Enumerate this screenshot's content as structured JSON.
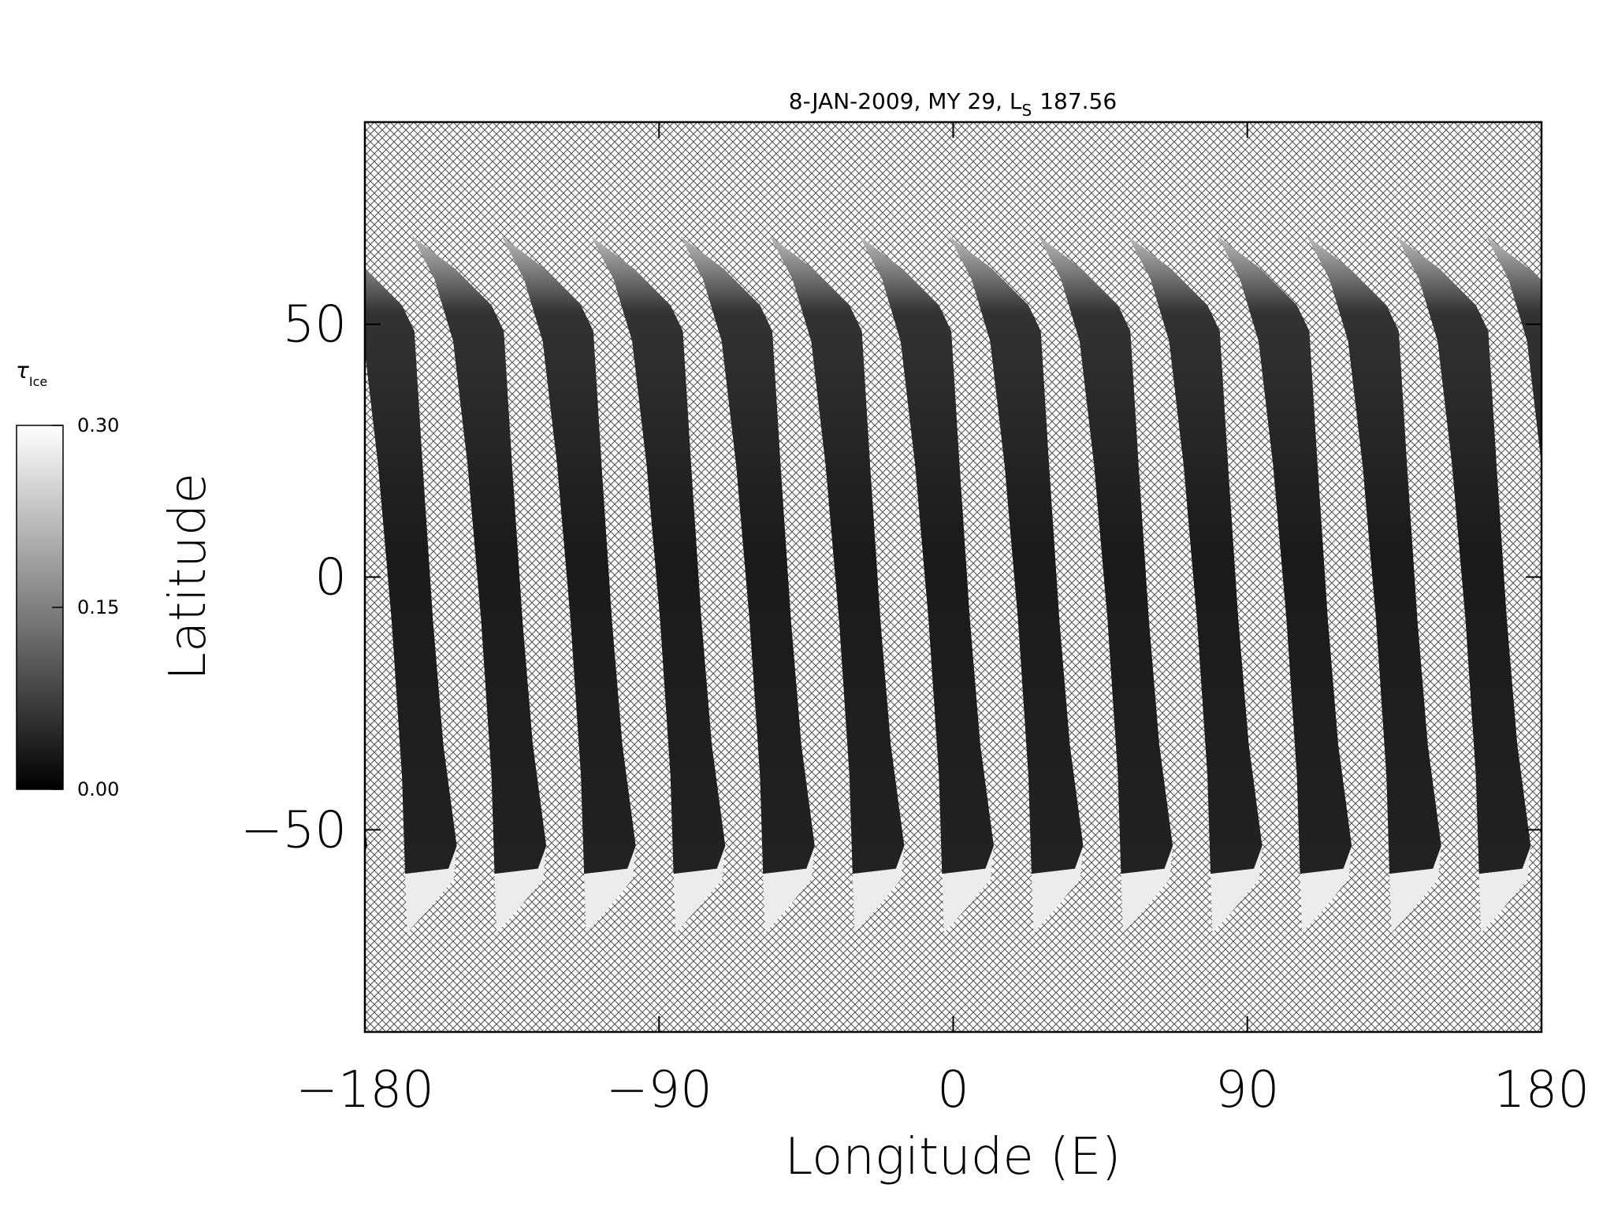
{
  "chart_data": {
    "type": "map",
    "title": "8-JAN-2009, MY 29,  L",
    "title_subscript": "S",
    "title_suffix": "187.56",
    "x_label": "Longitude (E)",
    "y_label": "Latitude",
    "xlim": [
      -180,
      180
    ],
    "xticks": [
      {
        "value": -180,
        "label": "−180"
      },
      {
        "value": -90,
        "label": "−90"
      },
      0,
      90,
      180
    ],
    "ylim": [
      -90,
      90
    ],
    "yticks": [
      {
        "value": -50,
        "label": "−50"
      },
      0,
      50
    ],
    "colorbar": {
      "label": "τ",
      "label_subscript": "Ice",
      "clim": [
        0,
        0.3
      ],
      "ticks": [
        {
          "value": 0,
          "label": "0.00"
        },
        {
          "value": 0.15,
          "label": "0.15"
        },
        {
          "value": 0.3,
          "label": "0.30"
        }
      ]
    }
  }
}
